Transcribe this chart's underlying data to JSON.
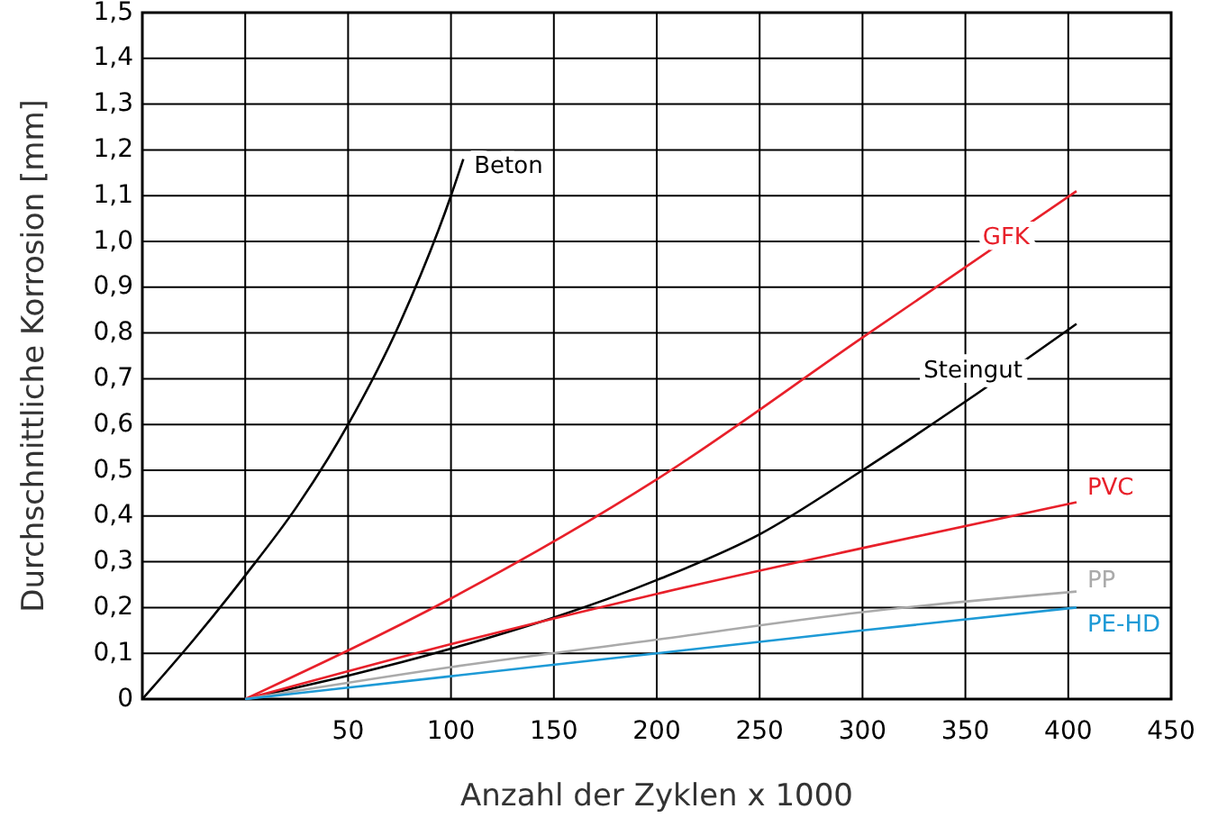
{
  "chart_data": {
    "type": "line",
    "xlabel": "Anzahl der Zyklen x 1000",
    "ylabel": "Durchschnittliche Korrosion [mm]",
    "xlim": [
      -50,
      450
    ],
    "xticks": [
      {
        "value": -50,
        "label": null
      },
      {
        "value": 0,
        "label": null
      },
      50,
      100,
      150,
      200,
      250,
      300,
      350,
      400,
      450
    ],
    "ylim": [
      0,
      1.5
    ],
    "yticks": [
      {
        "value": 0,
        "label": "0"
      },
      {
        "value": 0.1,
        "label": "0,1"
      },
      {
        "value": 0.2,
        "label": "0,2"
      },
      {
        "value": 0.3,
        "label": "0,3"
      },
      {
        "value": 0.4,
        "label": "0,4"
      },
      {
        "value": 0.5,
        "label": "0,5"
      },
      {
        "value": 0.6,
        "label": "0,6"
      },
      {
        "value": 0.7,
        "label": "0,7"
      },
      {
        "value": 0.8,
        "label": "0,8"
      },
      {
        "value": 0.9,
        "label": "0,9"
      },
      {
        "value": 1,
        "label": "1,0"
      },
      {
        "value": 1.1,
        "label": "1,1"
      },
      {
        "value": 1.2,
        "label": "1,2"
      },
      {
        "value": 1.3,
        "label": "1,3"
      },
      {
        "value": 1.4,
        "label": "1,4"
      },
      {
        "value": 1.5,
        "label": "1,5"
      }
    ],
    "grid": true,
    "marker": "none",
    "line_style": "solid",
    "series": [
      {
        "name": "Beton",
        "color": "#000000",
        "x": [
          -50,
          -25,
          0,
          25,
          50,
          75,
          100,
          106
        ],
        "values": [
          0,
          0.13,
          0.27,
          0.42,
          0.6,
          0.82,
          1.1,
          1.18
        ]
      },
      {
        "name": "GFK",
        "color": "#e8202a",
        "x": [
          0,
          100,
          200,
          300,
          404
        ],
        "values": [
          0,
          0.22,
          0.48,
          0.79,
          1.11
        ]
      },
      {
        "name": "Steingut",
        "color": "#000000",
        "x": [
          0,
          100,
          200,
          250,
          300,
          350,
          404
        ],
        "values": [
          0,
          0.11,
          0.26,
          0.36,
          0.5,
          0.65,
          0.82
        ]
      },
      {
        "name": "PVC",
        "color": "#e8202a",
        "x": [
          0,
          100,
          200,
          300,
          404
        ],
        "values": [
          0,
          0.12,
          0.23,
          0.33,
          0.43
        ]
      },
      {
        "name": "PP",
        "color": "#aaaaaa",
        "x": [
          0,
          100,
          200,
          300,
          404
        ],
        "values": [
          0,
          0.07,
          0.13,
          0.19,
          0.235
        ]
      },
      {
        "name": "PE-HD",
        "color": "#1e9ad6",
        "x": [
          0,
          100,
          200,
          300,
          404
        ],
        "values": [
          0,
          0.05,
          0.1,
          0.15,
          0.2
        ]
      }
    ]
  }
}
